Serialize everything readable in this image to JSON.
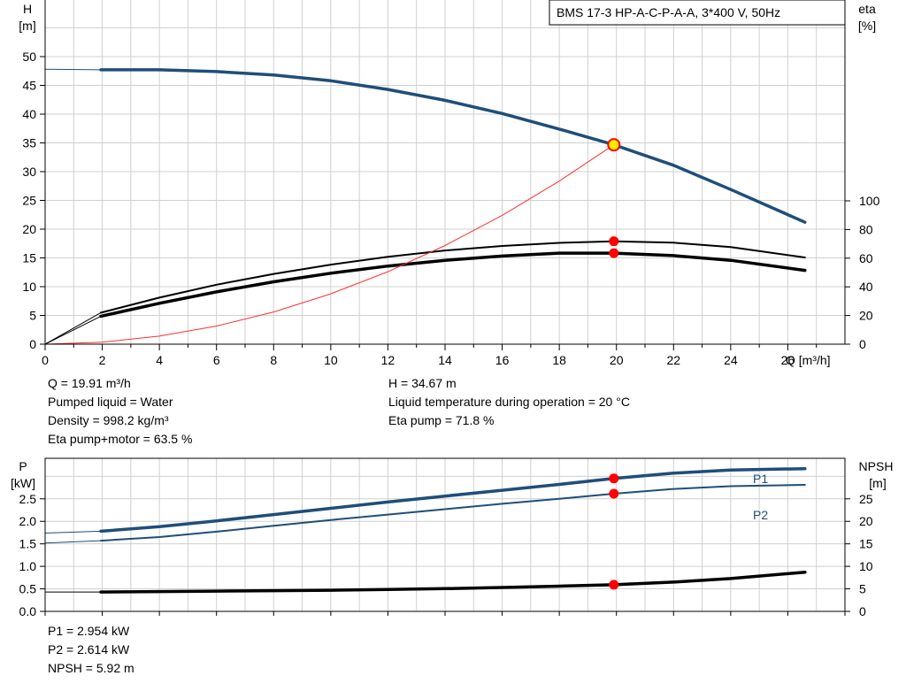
{
  "model_label": "BMS 17-3 HP-A-C-P-A-A, 3*400 V, 50Hz",
  "colors": {
    "head": "#1f4e79",
    "eta": "#000000",
    "system": "#ff3030",
    "marker": "#ff0000",
    "grid": "#d0d0d0",
    "p": "#1f4e79",
    "npsh": "#000000"
  },
  "chart_data": [
    {
      "type": "line",
      "name": "pump-curve",
      "x_axis_label": "Q [m³/h]",
      "y_left_label": [
        "H",
        "[m]"
      ],
      "y_right_label": [
        "eta",
        "[%]"
      ],
      "xlim": [
        0,
        28
      ],
      "ylim_left": [
        0,
        50
      ],
      "ylim_right": [
        0,
        100
      ],
      "x_ticks": [
        0,
        2,
        4,
        6,
        8,
        10,
        12,
        14,
        16,
        18,
        20,
        22,
        24,
        26
      ],
      "y_left_ticks": [
        0,
        5,
        10,
        15,
        20,
        25,
        30,
        35,
        40,
        45,
        50
      ],
      "y_right_ticks": [
        0,
        20,
        40,
        60,
        80,
        100
      ],
      "grid": true,
      "series": [
        {
          "key": "head",
          "axis": "left",
          "thin_x": [
            0,
            1.95
          ],
          "thin_y": [
            47.8,
            47.7
          ],
          "x": [
            1.95,
            4,
            6,
            8,
            10,
            12,
            14,
            16,
            18,
            19.91,
            22,
            24,
            26.6
          ],
          "y": [
            47.7,
            47.7,
            47.4,
            46.8,
            45.8,
            44.3,
            42.4,
            40.1,
            37.4,
            34.67,
            31.1,
            26.9,
            21.2
          ]
        },
        {
          "key": "eta_pump",
          "axis": "right",
          "thin_x": [
            0,
            1.95
          ],
          "thin_y": [
            0,
            22
          ],
          "x": [
            1.95,
            4,
            6,
            8,
            10,
            12,
            14,
            16,
            18,
            19.91,
            22,
            24,
            26.6
          ],
          "y": [
            22,
            32.5,
            41.5,
            49,
            55.5,
            61,
            65.4,
            68.5,
            70.7,
            71.8,
            70.8,
            67.7,
            60.5
          ]
        },
        {
          "key": "eta_total",
          "axis": "right",
          "thin_x": [
            0,
            1.95
          ],
          "thin_y": [
            0,
            19.5
          ],
          "x": [
            1.95,
            4,
            6,
            8,
            10,
            12,
            14,
            16,
            18,
            19.91,
            22,
            24,
            26.6
          ],
          "y": [
            19.5,
            28.5,
            36.5,
            43.5,
            49.5,
            54.5,
            58.5,
            61.5,
            63.5,
            63.5,
            61.8,
            58.5,
            51.5
          ]
        },
        {
          "key": "system",
          "axis": "left",
          "x": [
            0,
            2,
            4,
            6,
            8,
            10,
            12,
            14,
            16,
            18,
            19.91
          ],
          "y": [
            0,
            0.35,
            1.4,
            3.15,
            5.6,
            8.75,
            12.6,
            17.15,
            22.4,
            28.35,
            34.67
          ]
        }
      ],
      "markers": [
        {
          "x": 19.91,
          "y": 34.67,
          "axis": "left",
          "style": "duty"
        },
        {
          "x": 19.91,
          "y": 71.8,
          "axis": "right",
          "style": "dot"
        },
        {
          "x": 19.91,
          "y": 63.5,
          "axis": "right",
          "style": "dot"
        }
      ]
    },
    {
      "type": "line",
      "name": "power-npsh-curve",
      "y_left_label": [
        "P",
        "[kW]"
      ],
      "y_right_label": [
        "NPSH",
        "[m]"
      ],
      "xlim": [
        0,
        28
      ],
      "ylim_left": [
        0,
        3.4
      ],
      "ylim_right": [
        0,
        34
      ],
      "y_left_ticks": [
        0.0,
        0.5,
        1.0,
        1.5,
        2.0,
        2.5
      ],
      "y_left_tick_labels": [
        "0.0",
        "0.5",
        "1.0",
        "1.5",
        "2.0",
        "2.5"
      ],
      "y_right_ticks": [
        0,
        5,
        10,
        15,
        20,
        25
      ],
      "grid": true,
      "series": [
        {
          "key": "p1",
          "name": "P1",
          "axis": "left",
          "thin_x": [
            0,
            1.95
          ],
          "thin_y": [
            1.74,
            1.78
          ],
          "x": [
            1.95,
            4,
            6,
            8,
            10,
            12,
            14,
            16,
            18,
            19.91,
            22,
            24,
            26.6
          ],
          "y": [
            1.78,
            1.88,
            2.01,
            2.15,
            2.29,
            2.43,
            2.56,
            2.69,
            2.82,
            2.954,
            3.07,
            3.14,
            3.17
          ]
        },
        {
          "key": "p2",
          "name": "P2",
          "axis": "left",
          "thin_x": [
            0,
            1.95
          ],
          "thin_y": [
            1.52,
            1.57
          ],
          "x": [
            1.95,
            4,
            6,
            8,
            10,
            12,
            14,
            16,
            18,
            19.91,
            22,
            24,
            26.6
          ],
          "y": [
            1.57,
            1.65,
            1.77,
            1.9,
            2.03,
            2.15,
            2.27,
            2.39,
            2.5,
            2.614,
            2.72,
            2.78,
            2.81
          ]
        },
        {
          "key": "npsh",
          "name": "NPSH",
          "axis": "right",
          "thin_x": [
            0,
            1.95
          ],
          "thin_y": [
            4.3,
            4.3
          ],
          "x": [
            1.95,
            4,
            6,
            8,
            10,
            12,
            14,
            16,
            18,
            19.91,
            22,
            24,
            26.6
          ],
          "y": [
            4.3,
            4.4,
            4.5,
            4.6,
            4.7,
            4.85,
            5.05,
            5.3,
            5.6,
            5.92,
            6.5,
            7.3,
            8.7
          ]
        }
      ],
      "markers": [
        {
          "x": 19.91,
          "y": 2.954,
          "axis": "left",
          "style": "dot"
        },
        {
          "x": 19.91,
          "y": 2.614,
          "axis": "left",
          "style": "dot"
        },
        {
          "x": 19.91,
          "y": 5.92,
          "axis": "right",
          "style": "dot"
        }
      ]
    }
  ],
  "info_top": {
    "col1": [
      "Q = 19.91 m³/h",
      "Pumped liquid = Water",
      "Density = 998.2 kg/m³",
      "Eta pump+motor = 63.5 %"
    ],
    "col2": [
      "H = 34.67 m",
      "Liquid temperature during operation = 20 °C",
      "Eta pump = 71.8 %"
    ]
  },
  "info_bottom": [
    "P1 = 2.954 kW",
    "P2 = 2.614 kW",
    "NPSH = 5.92 m"
  ]
}
